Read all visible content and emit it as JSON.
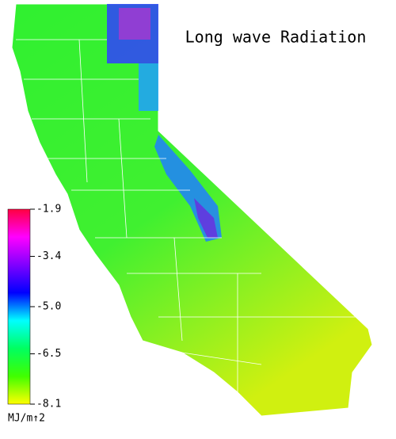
{
  "title": "Long wave Radiation",
  "colorbar": {
    "lim": [
      -8.1,
      -1.9
    ],
    "ticks": [
      -1.9,
      -3.4,
      {
        "value": -5,
        "label": "-5.0"
      },
      -6.5,
      -8.1
    ],
    "unit": "MJ/m↑2",
    "colors": [
      "#ffff00",
      "#40ff00",
      "#00ff60",
      "#00ffff",
      "#0000ff",
      "#8000ff",
      "#ff00ff",
      "#ff0040"
    ]
  }
}
